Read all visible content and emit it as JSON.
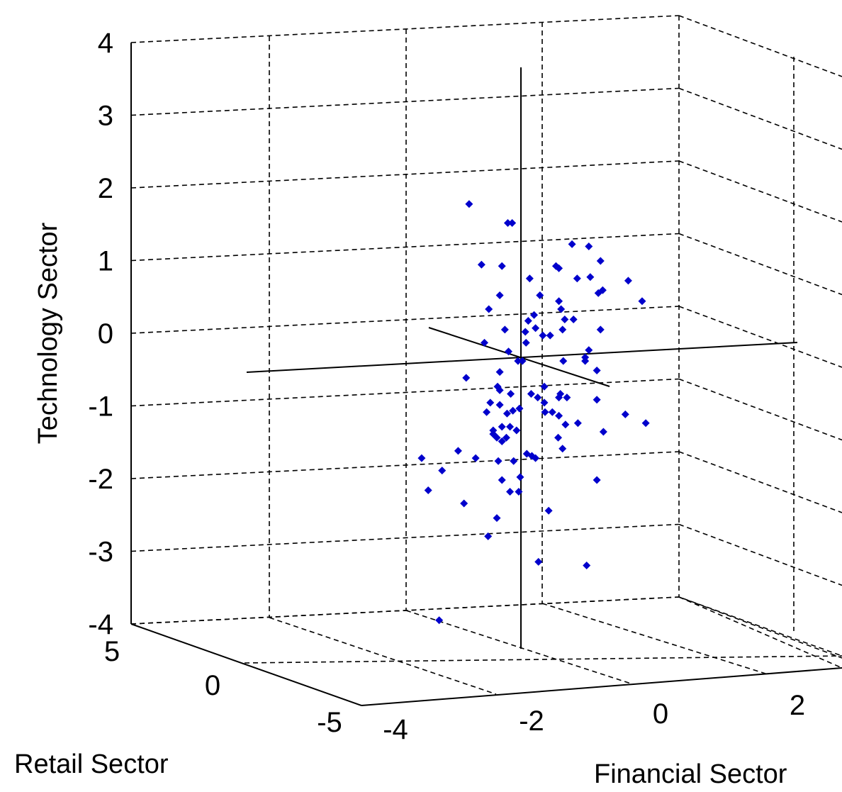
{
  "chart_data": {
    "type": "scatter",
    "projection": "3d",
    "title": "",
    "xlabel": "Financial Sector",
    "ylabel": "Retail Sector",
    "zlabel": "Technology Sector",
    "xlim": [
      -4,
      3.5
    ],
    "ylim": [
      -5,
      5
    ],
    "zlim": [
      -4,
      4
    ],
    "xticks": [
      -4,
      -2,
      0,
      2
    ],
    "yticks": [
      -5,
      0,
      5
    ],
    "zticks": [
      -4,
      -3,
      -2,
      -1,
      0,
      1,
      2,
      3,
      4
    ],
    "grid": true,
    "marker": "diamond",
    "color": "#0000cc",
    "points_projected": [
      [
        -0.71,
        2.1
      ],
      [
        -0.18,
        1.84
      ],
      [
        -0.12,
        1.84
      ],
      [
        0.7,
        1.55
      ],
      [
        0.93,
        1.52
      ],
      [
        1.09,
        1.32
      ],
      [
        -0.54,
        1.27
      ],
      [
        -0.26,
        1.25
      ],
      [
        0.48,
        1.25
      ],
      [
        0.52,
        1.22
      ],
      [
        0.77,
        1.08
      ],
      [
        0.95,
        1.1
      ],
      [
        1.47,
        1.05
      ],
      [
        1.06,
        0.88
      ],
      [
        1.12,
        0.92
      ],
      [
        0.12,
        1.08
      ],
      [
        -0.29,
        0.85
      ],
      [
        0.26,
        0.85
      ],
      [
        0.52,
        0.77
      ],
      [
        1.66,
        0.77
      ],
      [
        -0.44,
        0.66
      ],
      [
        0.55,
        0.66
      ],
      [
        0.6,
        0.52
      ],
      [
        0.72,
        0.52
      ],
      [
        0.18,
        0.58
      ],
      [
        0.1,
        0.5
      ],
      [
        0.2,
        0.4
      ],
      [
        0.3,
        0.3
      ],
      [
        0.4,
        0.3
      ],
      [
        0.57,
        0.38
      ],
      [
        1.09,
        0.38
      ],
      [
        0.06,
        0.35
      ],
      [
        -0.22,
        0.38
      ],
      [
        -0.5,
        0.2
      ],
      [
        0.07,
        0.2
      ],
      [
        0.93,
        0.1
      ],
      [
        -0.17,
        0.08
      ],
      [
        -0.04,
        -0.05
      ],
      [
        0.02,
        -0.05
      ],
      [
        0.58,
        -0.05
      ],
      [
        0.88,
        -0.05
      ],
      [
        0.88,
        0.0
      ],
      [
        -0.75,
        -0.28
      ],
      [
        -0.29,
        -0.2
      ],
      [
        1.04,
        -0.18
      ],
      [
        -0.32,
        -0.4
      ],
      [
        -0.29,
        -0.45
      ],
      [
        -0.14,
        -0.5
      ],
      [
        0.14,
        -0.5
      ],
      [
        0.23,
        -0.55
      ],
      [
        0.32,
        -0.4
      ],
      [
        0.32,
        -0.62
      ],
      [
        0.52,
        -0.55
      ],
      [
        0.54,
        -0.5
      ],
      [
        0.63,
        -0.55
      ],
      [
        1.04,
        -0.58
      ],
      [
        -0.42,
        -0.62
      ],
      [
        -0.29,
        -0.65
      ],
      [
        -0.11,
        -0.73
      ],
      [
        -0.02,
        -0.7
      ],
      [
        -0.19,
        -0.77
      ],
      [
        -0.47,
        -0.75
      ],
      [
        0.33,
        -0.75
      ],
      [
        0.43,
        -0.75
      ],
      [
        1.43,
        -0.78
      ],
      [
        0.52,
        -0.8
      ],
      [
        0.61,
        -0.92
      ],
      [
        0.78,
        -0.9
      ],
      [
        1.71,
        -0.9
      ],
      [
        -0.38,
        -1.0
      ],
      [
        -0.26,
        -0.95
      ],
      [
        -0.15,
        -0.95
      ],
      [
        -0.06,
        -1.0
      ],
      [
        -0.33,
        -1.1
      ],
      [
        -0.2,
        -1.1
      ],
      [
        -0.38,
        -1.05
      ],
      [
        -0.26,
        -1.15
      ],
      [
        0.51,
        -1.1
      ],
      [
        0.57,
        -1.25
      ],
      [
        1.13,
        -1.02
      ],
      [
        -0.86,
        -1.28
      ],
      [
        -0.62,
        -1.38
      ],
      [
        -0.31,
        -1.42
      ],
      [
        -0.1,
        -1.42
      ],
      [
        0.08,
        -1.32
      ],
      [
        0.15,
        -1.35
      ],
      [
        0.2,
        -1.38
      ],
      [
        -1.36,
        -1.38
      ],
      [
        -1.08,
        -1.55
      ],
      [
        -1.27,
        -1.82
      ],
      [
        -0.78,
        -2.0
      ],
      [
        -0.26,
        -1.68
      ],
      [
        -0.15,
        -1.84
      ],
      [
        -0.03,
        -1.84
      ],
      [
        -0.01,
        -1.64
      ],
      [
        1.04,
        -1.68
      ],
      [
        -0.33,
        -2.2
      ],
      [
        -0.45,
        -2.45
      ],
      [
        0.38,
        -2.1
      ],
      [
        0.24,
        -2.8
      ],
      [
        0.9,
        -2.85
      ],
      [
        -1.12,
        -3.6
      ]
    ]
  }
}
